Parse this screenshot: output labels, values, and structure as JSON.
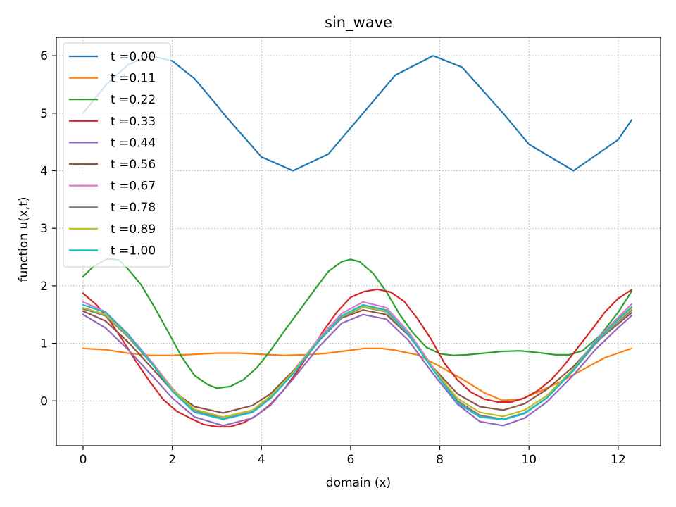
{
  "chart_data": {
    "type": "line",
    "title": "sin_wave",
    "xlabel": "domain (x)",
    "ylabel": "function u(x,t)",
    "xlim": [
      -0.6,
      12.95
    ],
    "ylim": [
      -0.78,
      6.32
    ],
    "grid": true,
    "grid_style": "dotted",
    "legend_position": "top-left",
    "x_ticks": [
      0,
      2,
      4,
      6,
      8,
      10,
      12
    ],
    "y_ticks": [
      0,
      1,
      2,
      3,
      4,
      5,
      6
    ],
    "series": [
      {
        "name": "t =0.00",
        "color": "#1f77b4",
        "points": [
          [
            0,
            5.0
          ],
          [
            0.5,
            5.48
          ],
          [
            1.0,
            5.84
          ],
          [
            1.5,
            6.0
          ],
          [
            2.0,
            5.91
          ],
          [
            2.5,
            5.6
          ],
          [
            3.0,
            5.14
          ],
          [
            3.14,
            5.0
          ],
          [
            4.0,
            4.24
          ],
          [
            4.71,
            4.0
          ],
          [
            5.5,
            4.29
          ],
          [
            6.28,
            5.0
          ],
          [
            7.0,
            5.66
          ],
          [
            7.85,
            6.0
          ],
          [
            8.5,
            5.8
          ],
          [
            9.42,
            5.0
          ],
          [
            10.0,
            4.46
          ],
          [
            11.0,
            4.0
          ],
          [
            12.0,
            4.54
          ],
          [
            12.3,
            4.88
          ]
        ]
      },
      {
        "name": "t =0.11",
        "color": "#ff7f0e",
        "points": [
          [
            0,
            0.91
          ],
          [
            0.5,
            0.89
          ],
          [
            1.0,
            0.83
          ],
          [
            1.5,
            0.79
          ],
          [
            2.0,
            0.79
          ],
          [
            2.5,
            0.81
          ],
          [
            3.0,
            0.83
          ],
          [
            3.5,
            0.83
          ],
          [
            4.0,
            0.81
          ],
          [
            4.5,
            0.79
          ],
          [
            5.0,
            0.8
          ],
          [
            5.5,
            0.83
          ],
          [
            6.0,
            0.88
          ],
          [
            6.3,
            0.91
          ],
          [
            6.7,
            0.91
          ],
          [
            7.0,
            0.88
          ],
          [
            7.5,
            0.8
          ],
          [
            8.0,
            0.6
          ],
          [
            8.5,
            0.38
          ],
          [
            9.0,
            0.14
          ],
          [
            9.4,
            0.01
          ],
          [
            9.8,
            0.02
          ],
          [
            10.2,
            0.15
          ],
          [
            10.7,
            0.33
          ],
          [
            11.2,
            0.54
          ],
          [
            11.7,
            0.75
          ],
          [
            12.3,
            0.91
          ]
        ]
      },
      {
        "name": "t =0.22",
        "color": "#2ca02c",
        "points": [
          [
            0,
            2.16
          ],
          [
            0.25,
            2.35
          ],
          [
            0.55,
            2.47
          ],
          [
            0.8,
            2.45
          ],
          [
            1.0,
            2.3
          ],
          [
            1.3,
            2.02
          ],
          [
            1.6,
            1.63
          ],
          [
            1.9,
            1.21
          ],
          [
            2.2,
            0.78
          ],
          [
            2.5,
            0.44
          ],
          [
            2.8,
            0.28
          ],
          [
            3.0,
            0.22
          ],
          [
            3.3,
            0.25
          ],
          [
            3.6,
            0.37
          ],
          [
            3.9,
            0.58
          ],
          [
            4.2,
            0.87
          ],
          [
            4.5,
            1.2
          ],
          [
            4.9,
            1.62
          ],
          [
            5.2,
            1.94
          ],
          [
            5.5,
            2.25
          ],
          [
            5.8,
            2.42
          ],
          [
            6.0,
            2.46
          ],
          [
            6.2,
            2.42
          ],
          [
            6.5,
            2.22
          ],
          [
            6.8,
            1.9
          ],
          [
            7.1,
            1.5
          ],
          [
            7.4,
            1.18
          ],
          [
            7.7,
            0.93
          ],
          [
            8.0,
            0.82
          ],
          [
            8.3,
            0.79
          ],
          [
            8.6,
            0.8
          ],
          [
            9.0,
            0.83
          ],
          [
            9.4,
            0.86
          ],
          [
            9.8,
            0.87
          ],
          [
            10.2,
            0.84
          ],
          [
            10.6,
            0.8
          ],
          [
            10.9,
            0.8
          ],
          [
            11.2,
            0.87
          ],
          [
            11.6,
            1.14
          ],
          [
            12.0,
            1.54
          ],
          [
            12.3,
            1.9
          ]
        ]
      },
      {
        "name": "t =0.33",
        "color": "#d62728",
        "points": [
          [
            0,
            1.87
          ],
          [
            0.3,
            1.67
          ],
          [
            0.6,
            1.39
          ],
          [
            0.9,
            1.04
          ],
          [
            1.2,
            0.67
          ],
          [
            1.5,
            0.33
          ],
          [
            1.8,
            0.02
          ],
          [
            2.1,
            -0.18
          ],
          [
            2.4,
            -0.3
          ],
          [
            2.7,
            -0.41
          ],
          [
            3.0,
            -0.45
          ],
          [
            3.3,
            -0.45
          ],
          [
            3.6,
            -0.38
          ],
          [
            3.9,
            -0.25
          ],
          [
            4.2,
            -0.06
          ],
          [
            4.5,
            0.19
          ],
          [
            4.8,
            0.51
          ],
          [
            5.1,
            0.86
          ],
          [
            5.4,
            1.23
          ],
          [
            5.7,
            1.55
          ],
          [
            6.0,
            1.8
          ],
          [
            6.3,
            1.9
          ],
          [
            6.6,
            1.94
          ],
          [
            6.9,
            1.89
          ],
          [
            7.2,
            1.73
          ],
          [
            7.5,
            1.43
          ],
          [
            7.8,
            1.08
          ],
          [
            8.1,
            0.66
          ],
          [
            8.4,
            0.36
          ],
          [
            8.7,
            0.15
          ],
          [
            9.0,
            0.03
          ],
          [
            9.3,
            -0.02
          ],
          [
            9.6,
            -0.02
          ],
          [
            9.9,
            0.05
          ],
          [
            10.2,
            0.18
          ],
          [
            10.5,
            0.37
          ],
          [
            10.8,
            0.63
          ],
          [
            11.1,
            0.93
          ],
          [
            11.4,
            1.23
          ],
          [
            11.7,
            1.54
          ],
          [
            12.0,
            1.78
          ],
          [
            12.3,
            1.93
          ]
        ]
      },
      {
        "name": "t =0.44",
        "color": "#9467bd",
        "points": [
          [
            0,
            1.5
          ],
          [
            0.5,
            1.27
          ],
          [
            1.0,
            0.9
          ],
          [
            1.57,
            0.42
          ],
          [
            2.0,
            0.05
          ],
          [
            2.5,
            -0.28
          ],
          [
            3.14,
            -0.43
          ],
          [
            3.8,
            -0.3
          ],
          [
            4.2,
            -0.08
          ],
          [
            4.71,
            0.38
          ],
          [
            5.3,
            0.95
          ],
          [
            5.8,
            1.35
          ],
          [
            6.28,
            1.5
          ],
          [
            6.8,
            1.42
          ],
          [
            7.3,
            1.05
          ],
          [
            7.85,
            0.47
          ],
          [
            8.4,
            -0.06
          ],
          [
            8.9,
            -0.36
          ],
          [
            9.42,
            -0.43
          ],
          [
            9.9,
            -0.3
          ],
          [
            10.4,
            -0.02
          ],
          [
            11.0,
            0.45
          ],
          [
            11.5,
            0.9
          ],
          [
            12.0,
            1.27
          ],
          [
            12.3,
            1.48
          ]
        ]
      },
      {
        "name": "t =0.56",
        "color": "#8c564b",
        "points": [
          [
            0,
            1.56
          ],
          [
            0.5,
            1.39
          ],
          [
            1.0,
            1.03
          ],
          [
            1.57,
            0.55
          ],
          [
            2.0,
            0.18
          ],
          [
            2.5,
            -0.1
          ],
          [
            3.14,
            -0.21
          ],
          [
            3.8,
            -0.08
          ],
          [
            4.2,
            0.12
          ],
          [
            4.71,
            0.52
          ],
          [
            5.3,
            1.06
          ],
          [
            5.8,
            1.44
          ],
          [
            6.28,
            1.58
          ],
          [
            6.8,
            1.5
          ],
          [
            7.3,
            1.14
          ],
          [
            7.85,
            0.58
          ],
          [
            8.4,
            0.12
          ],
          [
            8.9,
            -0.1
          ],
          [
            9.42,
            -0.16
          ],
          [
            9.9,
            -0.05
          ],
          [
            10.4,
            0.2
          ],
          [
            11.0,
            0.6
          ],
          [
            11.5,
            1.02
          ],
          [
            12.0,
            1.34
          ],
          [
            12.3,
            1.53
          ]
        ]
      },
      {
        "name": "t =0.67",
        "color": "#e377c2",
        "points": [
          [
            0,
            1.72
          ],
          [
            0.5,
            1.55
          ],
          [
            1.0,
            1.17
          ],
          [
            1.57,
            0.65
          ],
          [
            2.0,
            0.22
          ],
          [
            2.5,
            -0.18
          ],
          [
            3.14,
            -0.32
          ],
          [
            3.8,
            -0.2
          ],
          [
            4.2,
            0.04
          ],
          [
            4.71,
            0.5
          ],
          [
            5.3,
            1.1
          ],
          [
            5.8,
            1.52
          ],
          [
            6.28,
            1.72
          ],
          [
            6.8,
            1.62
          ],
          [
            7.3,
            1.2
          ],
          [
            7.85,
            0.58
          ],
          [
            8.4,
            -0.02
          ],
          [
            8.9,
            -0.26
          ],
          [
            9.42,
            -0.33
          ],
          [
            9.9,
            -0.22
          ],
          [
            10.4,
            0.05
          ],
          [
            11.0,
            0.56
          ],
          [
            11.5,
            1.05
          ],
          [
            12.0,
            1.45
          ],
          [
            12.3,
            1.68
          ]
        ]
      },
      {
        "name": "t =0.78",
        "color": "#7f7f7f",
        "points": [
          [
            0,
            1.6
          ],
          [
            0.5,
            1.48
          ],
          [
            1.0,
            1.12
          ],
          [
            1.57,
            0.62
          ],
          [
            2.0,
            0.2
          ],
          [
            2.5,
            -0.16
          ],
          [
            3.14,
            -0.31
          ],
          [
            3.8,
            -0.19
          ],
          [
            4.2,
            0.05
          ],
          [
            4.71,
            0.48
          ],
          [
            5.3,
            1.05
          ],
          [
            5.8,
            1.45
          ],
          [
            6.28,
            1.63
          ],
          [
            6.8,
            1.55
          ],
          [
            7.3,
            1.15
          ],
          [
            7.85,
            0.55
          ],
          [
            8.4,
            0.0
          ],
          [
            8.9,
            -0.25
          ],
          [
            9.42,
            -0.32
          ],
          [
            9.9,
            -0.21
          ],
          [
            10.4,
            0.05
          ],
          [
            11.0,
            0.53
          ],
          [
            11.5,
            1.0
          ],
          [
            12.0,
            1.38
          ],
          [
            12.3,
            1.57
          ]
        ]
      },
      {
        "name": "t =0.89",
        "color": "#bcbd22",
        "points": [
          [
            0,
            1.62
          ],
          [
            0.5,
            1.5
          ],
          [
            1.0,
            1.14
          ],
          [
            1.57,
            0.63
          ],
          [
            2.0,
            0.2
          ],
          [
            2.5,
            -0.15
          ],
          [
            3.14,
            -0.28
          ],
          [
            3.8,
            -0.16
          ],
          [
            4.2,
            0.08
          ],
          [
            4.71,
            0.5
          ],
          [
            5.3,
            1.07
          ],
          [
            5.8,
            1.47
          ],
          [
            6.28,
            1.64
          ],
          [
            6.8,
            1.56
          ],
          [
            7.3,
            1.16
          ],
          [
            7.85,
            0.56
          ],
          [
            8.4,
            0.04
          ],
          [
            8.9,
            -0.2
          ],
          [
            9.42,
            -0.27
          ],
          [
            9.9,
            -0.16
          ],
          [
            10.4,
            0.09
          ],
          [
            11.0,
            0.56
          ],
          [
            11.5,
            1.03
          ],
          [
            12.0,
            1.4
          ],
          [
            12.3,
            1.6
          ]
        ]
      },
      {
        "name": "t =1.00",
        "color": "#17becf",
        "points": [
          [
            0,
            1.67
          ],
          [
            0.5,
            1.54
          ],
          [
            1.0,
            1.16
          ],
          [
            1.57,
            0.62
          ],
          [
            2.0,
            0.17
          ],
          [
            2.5,
            -0.2
          ],
          [
            3.14,
            -0.32
          ],
          [
            3.8,
            -0.2
          ],
          [
            4.2,
            0.04
          ],
          [
            4.71,
            0.47
          ],
          [
            5.3,
            1.06
          ],
          [
            5.8,
            1.48
          ],
          [
            6.28,
            1.67
          ],
          [
            6.8,
            1.58
          ],
          [
            7.3,
            1.16
          ],
          [
            7.85,
            0.54
          ],
          [
            8.4,
            -0.04
          ],
          [
            8.9,
            -0.28
          ],
          [
            9.42,
            -0.33
          ],
          [
            9.9,
            -0.22
          ],
          [
            10.4,
            0.05
          ],
          [
            11.0,
            0.54
          ],
          [
            11.5,
            1.03
          ],
          [
            12.0,
            1.42
          ],
          [
            12.3,
            1.63
          ]
        ]
      }
    ]
  }
}
